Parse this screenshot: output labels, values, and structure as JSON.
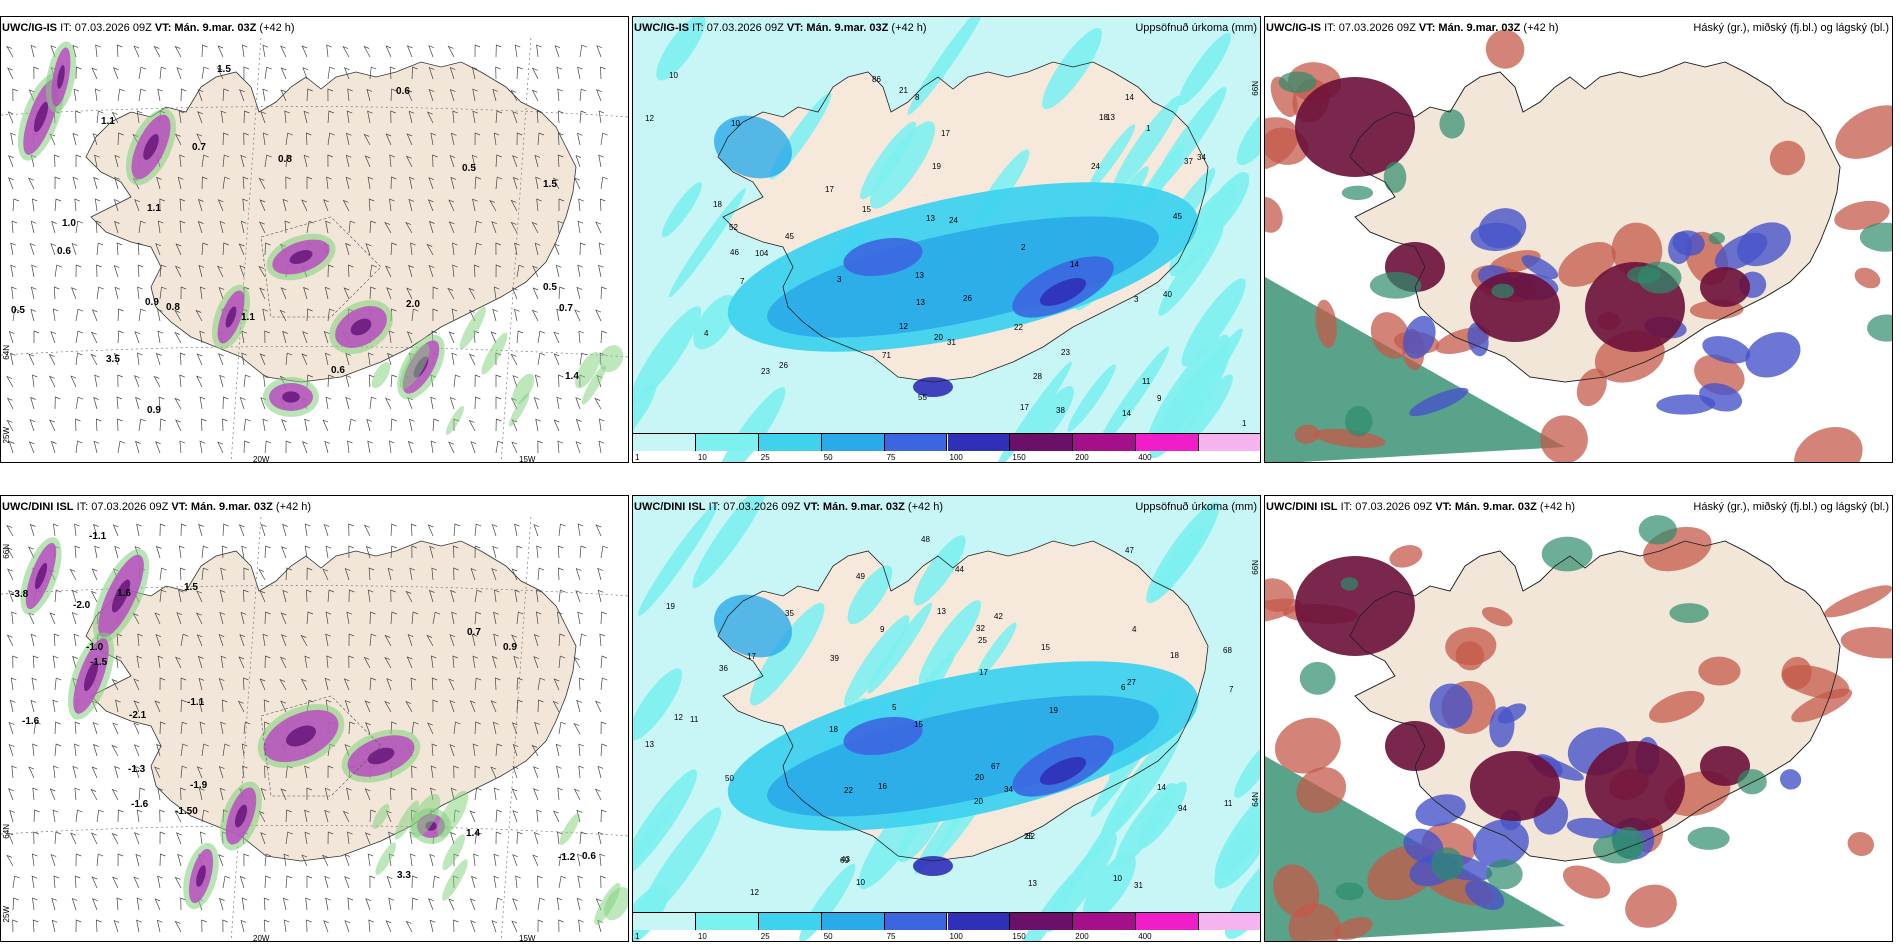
{
  "panels": [
    {
      "id": "ig-wind",
      "title_model": "UWC/IG-IS",
      "title_it": "IT: 07.03.2026 09Z",
      "title_vt": "VT: Mán. 9.mar. 03Z",
      "title_lead": "(+42 h)",
      "right_title": "",
      "coords": {
        "lon_a": "20W",
        "lon_b": "15W",
        "lat_a": "64N",
        "lat_b": "25W"
      }
    },
    {
      "id": "ig-precip",
      "title_model": "UWC/IG-IS",
      "title_it": "IT: 07.03.2026 09Z",
      "title_vt": "VT: Mán. 9.mar. 03Z",
      "title_lead": "(+42 h)",
      "right_title": "Uppsöfnuð úrkoma (mm)",
      "coords": {
        "lat_a": "66N"
      }
    },
    {
      "id": "ig-cloud",
      "title_model": "UWC/IG-IS",
      "title_it": "IT: 07.03.2026 09Z",
      "title_vt": "VT: Mán. 9.mar. 03Z",
      "title_lead": "(+42 h)",
      "right_title": "Háský (gr.), miðský (fj.bl.) og lágský (bl.)"
    },
    {
      "id": "dini-wind",
      "title_model": "UWC/DINI ISL",
      "title_it": "IT: 07.03.2026 09Z",
      "title_vt": "VT: Mán. 9.mar. 03Z",
      "title_lead": "(+42 h)",
      "right_title": "",
      "coords": {
        "lon_a": "20W",
        "lon_b": "15W",
        "lat_a": "64N",
        "lat_b": "25W",
        "lat_c": "66N"
      }
    },
    {
      "id": "dini-precip",
      "title_model": "UWC/DINI ISL",
      "title_it": "IT: 07.03.2026 09Z",
      "title_vt": "VT: Mán. 9.mar. 03Z",
      "title_lead": "(+42 h)",
      "right_title": "Uppsöfnuð úrkoma (mm)",
      "coords": {
        "lat_a": "66N",
        "lat_b": "64N"
      }
    },
    {
      "id": "dini-cloud",
      "title_model": "UWC/DINI ISL",
      "title_it": "IT: 07.03.2026 09Z",
      "title_vt": "VT: Mán. 9.mar. 03Z",
      "title_lead": "(+42 h)",
      "right_title": "Háský (gr.), miðský (fj.bl.) og lágský (bl.)"
    }
  ],
  "colorbar": {
    "labels": [
      "1",
      "10",
      "25",
      "50",
      "75",
      "100",
      "150",
      "200",
      "400"
    ],
    "colors": [
      "#c8f6f6",
      "#7df0f0",
      "#3fd2ee",
      "#2aaae8",
      "#3b66e0",
      "#2f2fb8",
      "#6a1068",
      "#a3108a",
      "#f01ec8",
      "#f5b4f0"
    ]
  },
  "wind_labels_top": [
    "0.5",
    "0.5",
    "0.6",
    "1.1",
    "1.1",
    "0.5",
    "1.1",
    "0.8",
    "1.5",
    "1.5",
    "1.0",
    "0.7",
    "0.9",
    "0.8",
    "0.6",
    "0.6",
    "0.7",
    "2.0",
    "3.5",
    "1.4",
    "0.9"
  ],
  "wind_labels_bottom": [
    "-3.8",
    "-1.1",
    "0.7",
    "-1.0",
    "-1.1",
    "-2.1",
    "-1.2",
    "-1.50",
    "-2.0",
    "-1.3",
    "-1.6",
    "-1.5",
    "-1.9",
    "-1.6",
    "0.6",
    "0.9",
    "1.5",
    "3.3",
    "1.6",
    "1.4"
  ],
  "precip_labels_top": [
    "12",
    "14",
    "14",
    "21",
    "18",
    "13",
    "19",
    "20",
    "10",
    "13",
    "18",
    "17",
    "22",
    "11",
    "24",
    "23",
    "15",
    "17",
    "23",
    "34",
    "26",
    "31",
    "40",
    "38",
    "55",
    "37",
    "52",
    "45",
    "86",
    "104",
    "46",
    "28",
    "45",
    "71",
    "26",
    "24",
    "17",
    "13",
    "13",
    "9",
    "8",
    "10",
    "3",
    "2",
    "1",
    "4",
    "7",
    "3",
    "14",
    "12",
    "1"
  ],
  "precip_labels_bottom": [
    "13",
    "10",
    "13",
    "10",
    "11",
    "12",
    "20",
    "19",
    "17",
    "17",
    "18",
    "15",
    "39",
    "34",
    "47",
    "44",
    "36",
    "27",
    "25",
    "32",
    "49",
    "50",
    "67",
    "42",
    "62",
    "69",
    "94",
    "68",
    "43",
    "48",
    "35",
    "31",
    "22",
    "18",
    "16",
    "19",
    "14",
    "13",
    "12",
    "11",
    "9",
    "6",
    "5",
    "4",
    "7",
    "15",
    "20",
    "25"
  ],
  "colors": {
    "land": "#f2e6d8",
    "wind_purple": "#b84ec0",
    "wind_dark": "#6c1a80",
    "wind_green": "#7fcf7a",
    "cloud_high": "#6b0f3a",
    "cloud_mid": "#4754c9",
    "cloud_low": "#2e8c6c",
    "cloud_red": "#c45a4a"
  }
}
